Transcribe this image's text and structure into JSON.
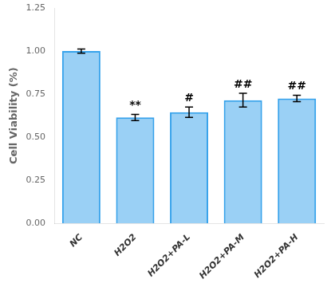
{
  "chart_data": {
    "type": "bar",
    "categories": [
      "NC",
      "H2O2",
      "H2O2+PA-L",
      "H2O2+PA-M",
      "H2O2+PA-H"
    ],
    "values": [
      1.0,
      0.615,
      0.645,
      0.715,
      0.725
    ],
    "errors": [
      0.012,
      0.018,
      0.03,
      0.04,
      0.018
    ],
    "ylabel": "Cell Viability (%)",
    "ylim": [
      0.0,
      1.25
    ],
    "yticks": [
      {
        "value": 0.0,
        "label": "0.00"
      },
      0.25,
      {
        "value": 0.5,
        "label": "0.50"
      },
      0.75,
      {
        "value": 1.0,
        "label": "1.00"
      },
      1.25
    ],
    "annotations": [
      {
        "category": "H2O2",
        "text": "**"
      },
      {
        "category": "H2O2+PA-L",
        "text": "#"
      },
      {
        "category": "H2O2+PA-M",
        "text": "##"
      },
      {
        "category": "H2O2+PA-H",
        "text": "##"
      }
    ],
    "grid": false
  }
}
